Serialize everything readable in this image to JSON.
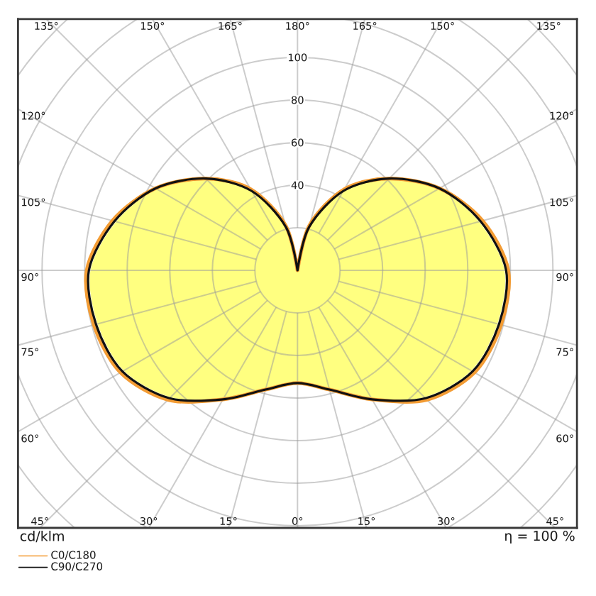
{
  "chart_data": {
    "type": "radar",
    "categories": [
      "180°",
      "165°",
      "150°",
      "135°",
      "120°",
      "105°",
      "90°",
      "75°",
      "60°",
      "45°",
      "30°",
      "15°",
      "0°",
      "15°",
      "30°",
      "45°",
      "60°",
      "75°",
      "90°",
      "105°",
      "120°",
      "135°",
      "150°",
      "165°"
    ],
    "series": [
      {
        "type": "area",
        "color": "#ffff80",
        "values": [
          0,
          20,
          42,
          60,
          76,
          88,
          97,
          97,
          94,
          84,
          69,
          57,
          52,
          57,
          69,
          84,
          94,
          97,
          97,
          88,
          76,
          60,
          42,
          20
        ]
      },
      {
        "name": "C0/C180",
        "color": "#f39c34",
        "values": [
          0,
          22,
          44,
          61,
          77,
          90,
          99,
          99,
          96,
          86,
          70,
          58,
          53,
          58,
          70,
          86,
          96,
          99,
          99,
          90,
          77,
          61,
          44,
          22
        ]
      },
      {
        "name": "C90/C270",
        "color": "#111111",
        "values": [
          0,
          21,
          43,
          61,
          77,
          89,
          98,
          98,
          95,
          85,
          70,
          58,
          53,
          58,
          70,
          85,
          95,
          98,
          98,
          89,
          77,
          61,
          43,
          21
        ]
      }
    ],
    "ylim": [
      0,
      160
    ],
    "yticks": [
      40,
      60,
      80,
      100
    ],
    "grid": true,
    "legend": "bottom left",
    "ylabel": "cd/klm",
    "annotations": [
      "η = 100 %"
    ]
  }
}
